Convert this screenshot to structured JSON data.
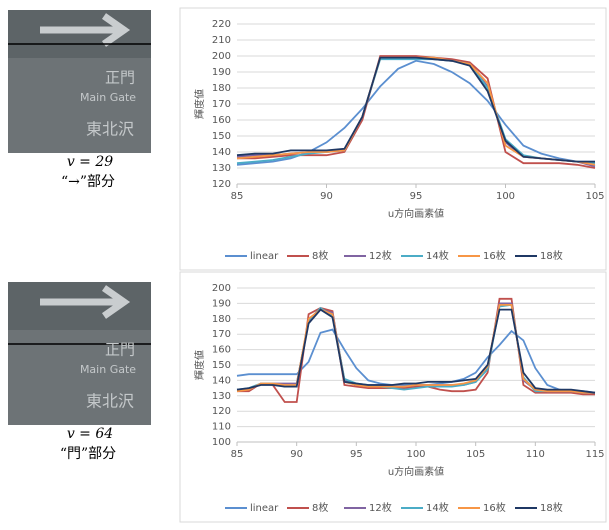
{
  "panels": [
    {
      "sign_texts": [
        "正門",
        "Main Gate",
        "東北沢"
      ],
      "v": "v = 29",
      "caption": "“→”部分"
    },
    {
      "sign_texts": [
        "正門",
        "Main Gate",
        "東北沢"
      ],
      "v": "v = 64",
      "caption": "“門”部分"
    }
  ],
  "chart_data": [
    {
      "type": "line",
      "xlabel": "u方向画素値",
      "ylabel": "輝度値",
      "x": [
        85,
        86,
        87,
        88,
        89,
        90,
        91,
        92,
        93,
        94,
        95,
        96,
        97,
        98,
        99,
        100,
        101,
        102,
        103,
        104,
        105
      ],
      "xlim": [
        85,
        105
      ],
      "xticks": [
        85,
        90,
        95,
        100,
        105
      ],
      "ylim": [
        120,
        220
      ],
      "yticks": [
        120,
        130,
        140,
        150,
        160,
        170,
        180,
        190,
        200,
        210,
        220
      ],
      "grid": true,
      "legend": "bottom",
      "series": [
        {
          "name": "linear",
          "color": "#5b8fd0",
          "values": [
            132,
            133,
            134,
            136,
            140,
            146,
            155,
            167,
            181,
            192,
            197,
            195,
            190,
            183,
            172,
            157,
            144,
            139,
            136,
            134,
            134
          ]
        },
        {
          "name": "8枚",
          "color": "#c0504d",
          "values": [
            136,
            136,
            137,
            138,
            138,
            138,
            140,
            160,
            200,
            200,
            200,
            199,
            198,
            196,
            186,
            140,
            133,
            133,
            133,
            132,
            130
          ]
        },
        {
          "name": "12枚",
          "color": "#8064a2",
          "values": [
            137,
            138,
            138,
            139,
            140,
            140,
            141,
            162,
            199,
            199,
            199,
            198,
            197,
            195,
            181,
            146,
            137,
            136,
            135,
            134,
            131
          ]
        },
        {
          "name": "14枚",
          "color": "#4bacc6",
          "values": [
            133,
            134,
            135,
            137,
            139,
            140,
            141,
            162,
            198,
            198,
            198,
            198,
            197,
            195,
            180,
            148,
            138,
            136,
            135,
            134,
            133
          ]
        },
        {
          "name": "16枚",
          "color": "#f79646",
          "values": [
            136,
            137,
            138,
            139,
            140,
            140,
            141,
            162,
            199,
            199,
            199,
            199,
            197,
            195,
            183,
            144,
            137,
            136,
            135,
            134,
            132
          ]
        },
        {
          "name": "18枚",
          "color": "#1f3864",
          "values": [
            138,
            139,
            139,
            141,
            141,
            141,
            142,
            162,
            199,
            199,
            199,
            198,
            197,
            194,
            178,
            147,
            137,
            136,
            135,
            134,
            134
          ]
        }
      ]
    },
    {
      "type": "line",
      "xlabel": "u方向画素値",
      "ylabel": "輝度値",
      "x": [
        85,
        86,
        87,
        88,
        89,
        90,
        91,
        92,
        93,
        94,
        95,
        96,
        97,
        98,
        99,
        100,
        101,
        102,
        103,
        104,
        105,
        106,
        107,
        108,
        109,
        110,
        111,
        112,
        113,
        114,
        115
      ],
      "xlim": [
        85,
        115
      ],
      "xticks": [
        85,
        90,
        95,
        100,
        105,
        110,
        115
      ],
      "ylim": [
        100,
        200
      ],
      "yticks": [
        100,
        110,
        120,
        130,
        140,
        150,
        160,
        170,
        180,
        190,
        200
      ],
      "grid": true,
      "legend": "bottom",
      "series": [
        {
          "name": "linear",
          "color": "#5b8fd0",
          "values": [
            143,
            144,
            144,
            144,
            144,
            144,
            152,
            171,
            173,
            160,
            148,
            140,
            138,
            137,
            137,
            137,
            137,
            138,
            139,
            141,
            145,
            155,
            163,
            172,
            166,
            148,
            137,
            134,
            133,
            133,
            132
          ]
        },
        {
          "name": "8枚",
          "color": "#c0504d",
          "values": [
            133,
            133,
            138,
            137,
            126,
            126,
            183,
            187,
            185,
            137,
            136,
            135,
            135,
            135,
            135,
            136,
            136,
            134,
            133,
            133,
            134,
            145,
            193,
            193,
            137,
            132,
            132,
            132,
            132,
            131,
            131
          ]
        },
        {
          "name": "12枚",
          "color": "#8064a2",
          "values": [
            134,
            134,
            138,
            138,
            138,
            138,
            178,
            186,
            184,
            140,
            137,
            137,
            137,
            136,
            136,
            137,
            137,
            137,
            137,
            137,
            139,
            148,
            190,
            190,
            140,
            134,
            133,
            133,
            133,
            132,
            132
          ]
        },
        {
          "name": "14枚",
          "color": "#4bacc6",
          "values": [
            134,
            135,
            138,
            138,
            136,
            137,
            179,
            187,
            182,
            141,
            138,
            137,
            136,
            135,
            134,
            135,
            136,
            136,
            136,
            137,
            139,
            147,
            188,
            189,
            142,
            133,
            133,
            133,
            133,
            132,
            132
          ]
        },
        {
          "name": "16枚",
          "color": "#f79646",
          "values": [
            133,
            134,
            138,
            138,
            137,
            137,
            180,
            186,
            183,
            139,
            137,
            136,
            136,
            136,
            136,
            137,
            137,
            137,
            137,
            138,
            140,
            149,
            189,
            189,
            141,
            134,
            133,
            133,
            133,
            132,
            132
          ]
        },
        {
          "name": "18枚",
          "color": "#1f3864",
          "values": [
            134,
            135,
            137,
            137,
            136,
            136,
            177,
            186,
            181,
            139,
            138,
            137,
            137,
            137,
            138,
            138,
            139,
            139,
            139,
            140,
            141,
            150,
            186,
            186,
            145,
            135,
            134,
            134,
            134,
            133,
            132
          ]
        }
      ]
    }
  ]
}
